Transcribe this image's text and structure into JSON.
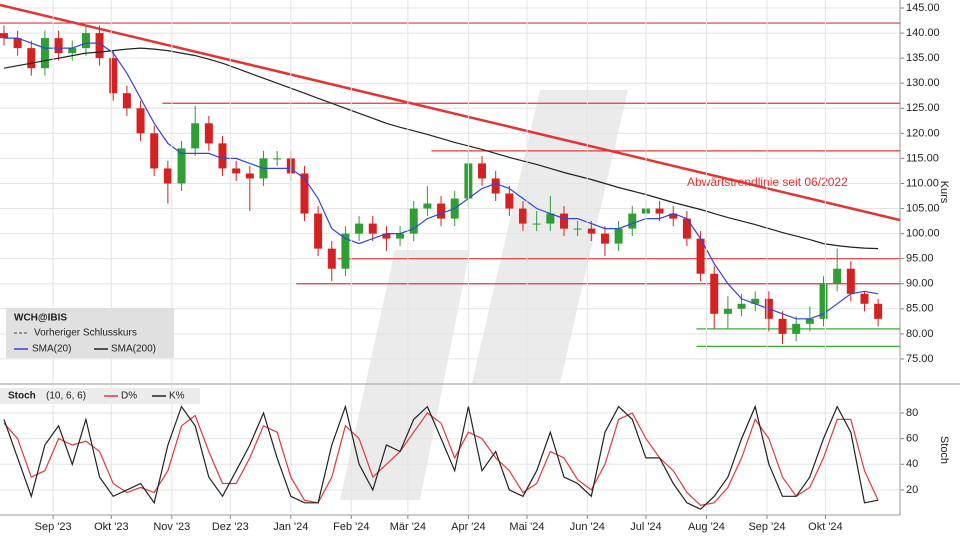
{
  "chart_data": [
    {
      "type": "candlestick",
      "y_label": "Kurs",
      "x": [
        0,
        1,
        2,
        3,
        4,
        5,
        6,
        7,
        8,
        9,
        10,
        11,
        12,
        13,
        14,
        15,
        16,
        17,
        18,
        19,
        20,
        21,
        22,
        23,
        24,
        25,
        26,
        27,
        28,
        29,
        30,
        31,
        32,
        33,
        34,
        35,
        36,
        37,
        38,
        39,
        40,
        41,
        42,
        43,
        44,
        45,
        46,
        47,
        48,
        49,
        50,
        51,
        52,
        53,
        54,
        55,
        56,
        57,
        58,
        59,
        60,
        61,
        62,
        63,
        64
      ],
      "open": [
        140,
        139,
        137,
        133,
        139,
        136,
        137,
        140,
        135,
        128,
        125,
        120,
        113,
        110,
        117,
        122,
        118,
        113,
        112,
        111,
        115,
        115,
        112,
        104,
        97,
        93,
        100,
        102,
        100,
        99,
        100,
        105,
        106,
        103,
        107,
        114,
        111,
        108,
        105,
        102,
        102,
        104,
        101,
        101,
        100,
        98,
        101,
        104,
        105,
        104,
        103,
        99,
        92,
        84,
        85,
        86,
        87,
        83,
        80,
        82,
        83,
        90,
        93,
        88,
        86
      ],
      "high": [
        141.5,
        140.5,
        138.5,
        140.5,
        140.5,
        138.5,
        141.5,
        141.5,
        136.5,
        129.5,
        126.5,
        121.5,
        114.5,
        118.5,
        125.5,
        123.5,
        119.5,
        114.5,
        113.5,
        116.5,
        116.5,
        116.5,
        113.5,
        105.5,
        98.5,
        101.5,
        103.5,
        103.5,
        101.5,
        101.5,
        106.5,
        109.5,
        107.5,
        108.5,
        116.5,
        115.5,
        112.5,
        109.5,
        106.5,
        104.5,
        107.5,
        105.5,
        102.5,
        102.5,
        101.5,
        102.5,
        105.5,
        106.5,
        106.5,
        105.5,
        104.5,
        100.5,
        93.5,
        87.5,
        88,
        88.5,
        88.5,
        84.5,
        83.5,
        85.5,
        91.5,
        97,
        94.5,
        88.5,
        87
      ],
      "low": [
        137.5,
        135.5,
        131.5,
        131.5,
        134.5,
        134.5,
        135.5,
        133.5,
        126.5,
        123.5,
        118.5,
        111.5,
        106,
        108.5,
        115.5,
        116.5,
        111.5,
        110.5,
        104.5,
        109.5,
        113.5,
        110.5,
        102.5,
        95.5,
        90.5,
        91.5,
        98.5,
        98.5,
        96.5,
        97.5,
        98.5,
        103.5,
        101.5,
        101.5,
        105.5,
        109.5,
        106.5,
        103.5,
        100.5,
        100.5,
        100.5,
        99.5,
        99.5,
        98.5,
        95.5,
        96.5,
        99.5,
        102.5,
        102.5,
        101.5,
        97.5,
        90.5,
        81,
        81,
        83.5,
        84.5,
        80.5,
        78,
        78.5,
        80.5,
        81.5,
        88.5,
        86.5,
        84.5,
        81.5
      ],
      "close": [
        139,
        137,
        133,
        139,
        136,
        137,
        140,
        135,
        128,
        125,
        120,
        113,
        110,
        117,
        122,
        118,
        113,
        112,
        111,
        115,
        115,
        112,
        104,
        97,
        93,
        100,
        102,
        100,
        99,
        100,
        105,
        106,
        103,
        107,
        114,
        111,
        108,
        105,
        102,
        102,
        104,
        101,
        101,
        100,
        98,
        101,
        104,
        105,
        104,
        103,
        99,
        92,
        84,
        85,
        86,
        87,
        83,
        80,
        82,
        83,
        90,
        93,
        88,
        86,
        83
      ],
      "up_color": "#2f9e34",
      "down_color": "#d42222",
      "series": [
        {
          "name": "SMA(20)",
          "color": "#3344dd",
          "values": [
            139,
            139,
            138,
            137,
            137,
            137,
            138,
            138,
            136,
            132,
            127,
            122,
            118,
            116,
            116,
            116,
            115,
            115,
            114,
            113,
            113,
            113,
            111,
            107,
            101,
            99,
            98,
            99,
            100,
            100,
            101,
            103,
            104,
            105,
            107,
            109,
            110,
            109,
            107,
            105,
            104,
            103,
            103,
            102,
            101,
            101,
            102,
            103,
            103,
            104,
            103,
            99,
            94,
            90,
            87,
            86,
            85,
            84,
            83,
            83,
            84,
            86,
            88,
            88.5,
            88
          ]
        },
        {
          "name": "SMA(200)",
          "color": "#222222",
          "values": [
            133,
            133.5,
            134,
            134.5,
            135,
            135.5,
            136,
            136.2,
            136.5,
            136.8,
            137,
            136.8,
            136.5,
            136,
            135.5,
            134.8,
            134,
            133,
            132,
            131,
            130,
            129,
            128,
            127,
            126,
            125,
            124,
            123,
            122,
            121.2,
            120.5,
            119.8,
            119,
            118.2,
            117.5,
            116.8,
            116,
            115.2,
            114.5,
            113.8,
            113,
            112.2,
            111.5,
            110.8,
            110,
            109.2,
            108.5,
            107.8,
            107,
            106.2,
            105.5,
            104.8,
            104,
            103.2,
            102.5,
            101.8,
            101,
            100.2,
            99.5,
            98.8,
            98,
            97.6,
            97.3,
            97.1,
            97
          ]
        }
      ],
      "legend": {
        "symbol": "WCH@IBIS",
        "previous_close": "Vorheriger Schlusskurs"
      },
      "levels": [
        {
          "value": 142,
          "x_from": -0.29,
          "color": "#e03a3a"
        },
        {
          "value": 126,
          "x_from": 11.6,
          "color": "#e03a3a"
        },
        {
          "value": 116.5,
          "x_from": 31.3,
          "color": "#e03a3a"
        },
        {
          "value": 95,
          "x_from": 24.4,
          "color": "#e03a3a"
        },
        {
          "value": 90,
          "x_from": 21.4,
          "color": "#e03a3a"
        },
        {
          "value": 81,
          "x_from": 50.7,
          "color": "#3cab3c"
        },
        {
          "value": 77.5,
          "x_from": 50.7,
          "color": "#3cab3c"
        }
      ],
      "trendline": {
        "x": [
          -0.29,
          65.6
        ],
        "values": [
          145.6,
          102.7
        ],
        "color": "#e43333",
        "label": "Abwärtstrendlinie seit 06/2022"
      },
      "xlim": [
        -0.29,
        65.6
      ],
      "ylim": [
        70.2,
        146.6
      ],
      "yticks": [
        {
          "value": 75,
          "label": "75.00"
        },
        {
          "value": 80,
          "label": "80.00"
        },
        {
          "value": 85,
          "label": "85.00"
        },
        {
          "value": 90,
          "label": "90.00"
        },
        {
          "value": 95,
          "label": "95.00"
        },
        {
          "value": 100,
          "label": "100.00"
        },
        {
          "value": 105,
          "label": "105.00"
        },
        {
          "value": 110,
          "label": "110.00"
        },
        {
          "value": 115,
          "label": "115.00"
        },
        {
          "value": 120,
          "label": "120.00"
        },
        {
          "value": 125,
          "label": "125.00"
        },
        {
          "value": 130,
          "label": "130.00"
        },
        {
          "value": 135,
          "label": "135.00"
        },
        {
          "value": 140,
          "label": "140.00"
        },
        {
          "value": 145,
          "label": "145.00"
        }
      ],
      "grid": true
    },
    {
      "type": "line",
      "title": "Stoch",
      "params": "(10, 6, 6)",
      "y_label": "Stoch",
      "x": [
        0,
        1,
        2,
        3,
        4,
        5,
        6,
        7,
        8,
        9,
        10,
        11,
        12,
        13,
        14,
        15,
        16,
        17,
        18,
        19,
        20,
        21,
        22,
        23,
        24,
        25,
        26,
        27,
        28,
        29,
        30,
        31,
        32,
        33,
        34,
        35,
        36,
        37,
        38,
        39,
        40,
        41,
        42,
        43,
        44,
        45,
        46,
        47,
        48,
        49,
        50,
        51,
        52,
        53,
        54,
        55,
        56,
        57,
        58,
        59,
        60,
        61,
        62,
        63,
        64
      ],
      "series": [
        {
          "name": "D%",
          "color": "#e23a3a",
          "values": [
            72,
            60,
            30,
            35,
            60,
            55,
            58,
            50,
            25,
            18,
            22,
            18,
            35,
            70,
            78,
            50,
            25,
            25,
            45,
            70,
            65,
            30,
            12,
            10,
            30,
            70,
            60,
            30,
            40,
            50,
            65,
            80,
            72,
            45,
            65,
            60,
            45,
            35,
            18,
            25,
            50,
            45,
            28,
            20,
            40,
            75,
            80,
            60,
            45,
            35,
            18,
            8,
            10,
            22,
            45,
            75,
            60,
            30,
            15,
            22,
            45,
            75,
            75,
            35,
            12
          ]
        },
        {
          "name": "K%",
          "color": "#222222",
          "values": [
            75,
            45,
            15,
            55,
            70,
            40,
            75,
            30,
            15,
            20,
            25,
            10,
            55,
            85,
            70,
            30,
            15,
            35,
            55,
            80,
            45,
            15,
            10,
            10,
            55,
            85,
            40,
            20,
            55,
            50,
            75,
            85,
            60,
            35,
            85,
            35,
            50,
            20,
            15,
            35,
            65,
            30,
            25,
            15,
            65,
            85,
            75,
            45,
            45,
            25,
            10,
            5,
            15,
            30,
            60,
            85,
            40,
            15,
            15,
            30,
            60,
            85,
            65,
            10,
            12
          ]
        }
      ],
      "xlim": [
        -0.29,
        65.6
      ],
      "ylim": [
        2.8,
        101.8
      ],
      "yticks": [
        20,
        40,
        60,
        80
      ],
      "xticks": [
        {
          "value": 3.6,
          "label": "Sep '23"
        },
        {
          "value": 7.86,
          "label": "Okt '23"
        },
        {
          "value": 12.29,
          "label": "Nov '23"
        },
        {
          "value": 16.57,
          "label": "Dez '23"
        },
        {
          "value": 21,
          "label": "Jan '24"
        },
        {
          "value": 25.43,
          "label": "Feb '24"
        },
        {
          "value": 29.57,
          "label": "Mär '24"
        },
        {
          "value": 34,
          "label": "Apr '24"
        },
        {
          "value": 38.29,
          "label": "Mai '24"
        },
        {
          "value": 42.71,
          "label": "Jun '24"
        },
        {
          "value": 47,
          "label": "Jul '24"
        },
        {
          "value": 51.43,
          "label": "Aug '24"
        },
        {
          "value": 55.86,
          "label": "Sep '24"
        },
        {
          "value": 60.14,
          "label": "Okt '24"
        }
      ],
      "grid": true
    }
  ]
}
